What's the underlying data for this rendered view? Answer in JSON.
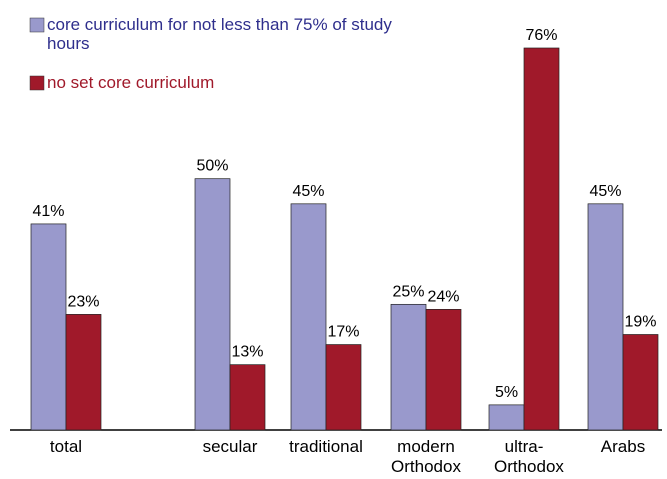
{
  "chart_data": {
    "type": "bar",
    "categories": [
      "total",
      null,
      "secular",
      "traditional",
      "modern Orthodox",
      "ultra-Orthodox",
      "Arabs"
    ],
    "series": [
      {
        "name": "core curriculum for not less than 75% of study hours",
        "color": "#9999cc",
        "values": [
          41,
          null,
          50,
          45,
          25,
          5,
          45
        ],
        "value_labels": [
          "41%",
          null,
          "50%",
          "45%",
          "25%",
          "5%",
          "45%"
        ]
      },
      {
        "name": "no set core curriculum",
        "color": "#a0192a",
        "values": [
          23,
          null,
          13,
          17,
          24,
          76,
          19
        ],
        "value_labels": [
          "23%",
          null,
          "13%",
          "17%",
          "24%",
          "76%",
          "19%"
        ]
      }
    ]
  }
}
